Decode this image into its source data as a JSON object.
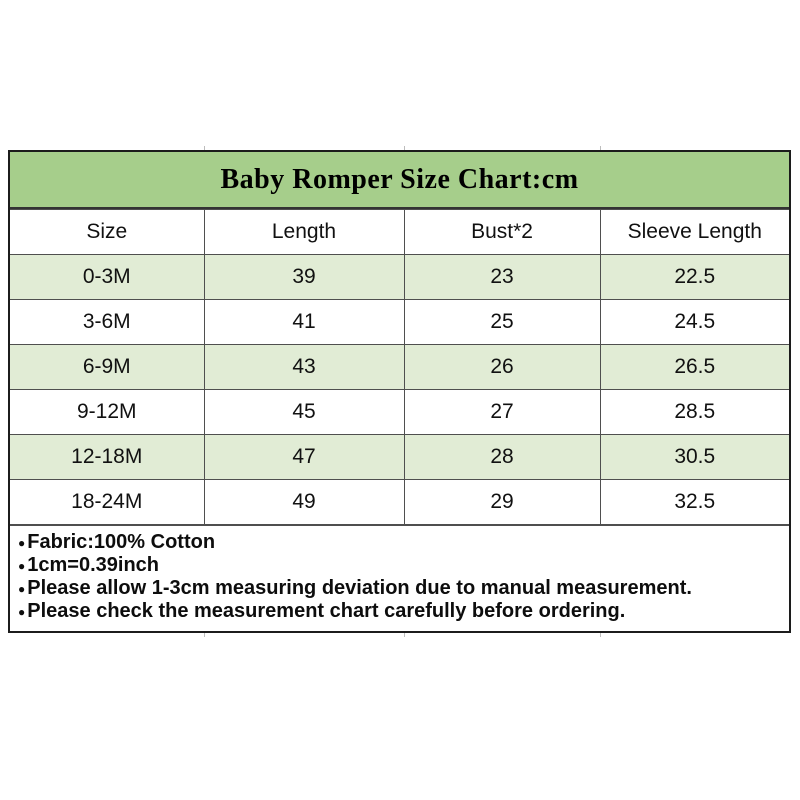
{
  "title": "Baby Romper Size Chart:cm",
  "unit": "cm",
  "chart_data": {
    "type": "table",
    "title": "Baby Romper Size Chart:cm",
    "columns": [
      "Size",
      "Length",
      "Bust*2",
      "Sleeve Length"
    ],
    "rows": [
      [
        "0-3M",
        "39",
        "23",
        "22.5"
      ],
      [
        "3-6M",
        "41",
        "25",
        "24.5"
      ],
      [
        "6-9M",
        "43",
        "26",
        "26.5"
      ],
      [
        "9-12M",
        "45",
        "27",
        "28.5"
      ],
      [
        "12-18M",
        "47",
        "28",
        "30.5"
      ],
      [
        "18-24M",
        "49",
        "29",
        "32.5"
      ]
    ],
    "notes": [
      "Fabric:100% Cotton",
      "1cm=0.39inch",
      "Please allow 1-3cm measuring deviation due to manual measurement.",
      "Please check the measurement chart carefully before ordering."
    ]
  },
  "notes_bullet": "●",
  "colors": {
    "title_bg": "#a6ce8b",
    "row_alt_bg": "#e1ecd5",
    "border_outer": "#1c1c1c",
    "border_inner": "#4f4f4f",
    "text": "#111111"
  }
}
